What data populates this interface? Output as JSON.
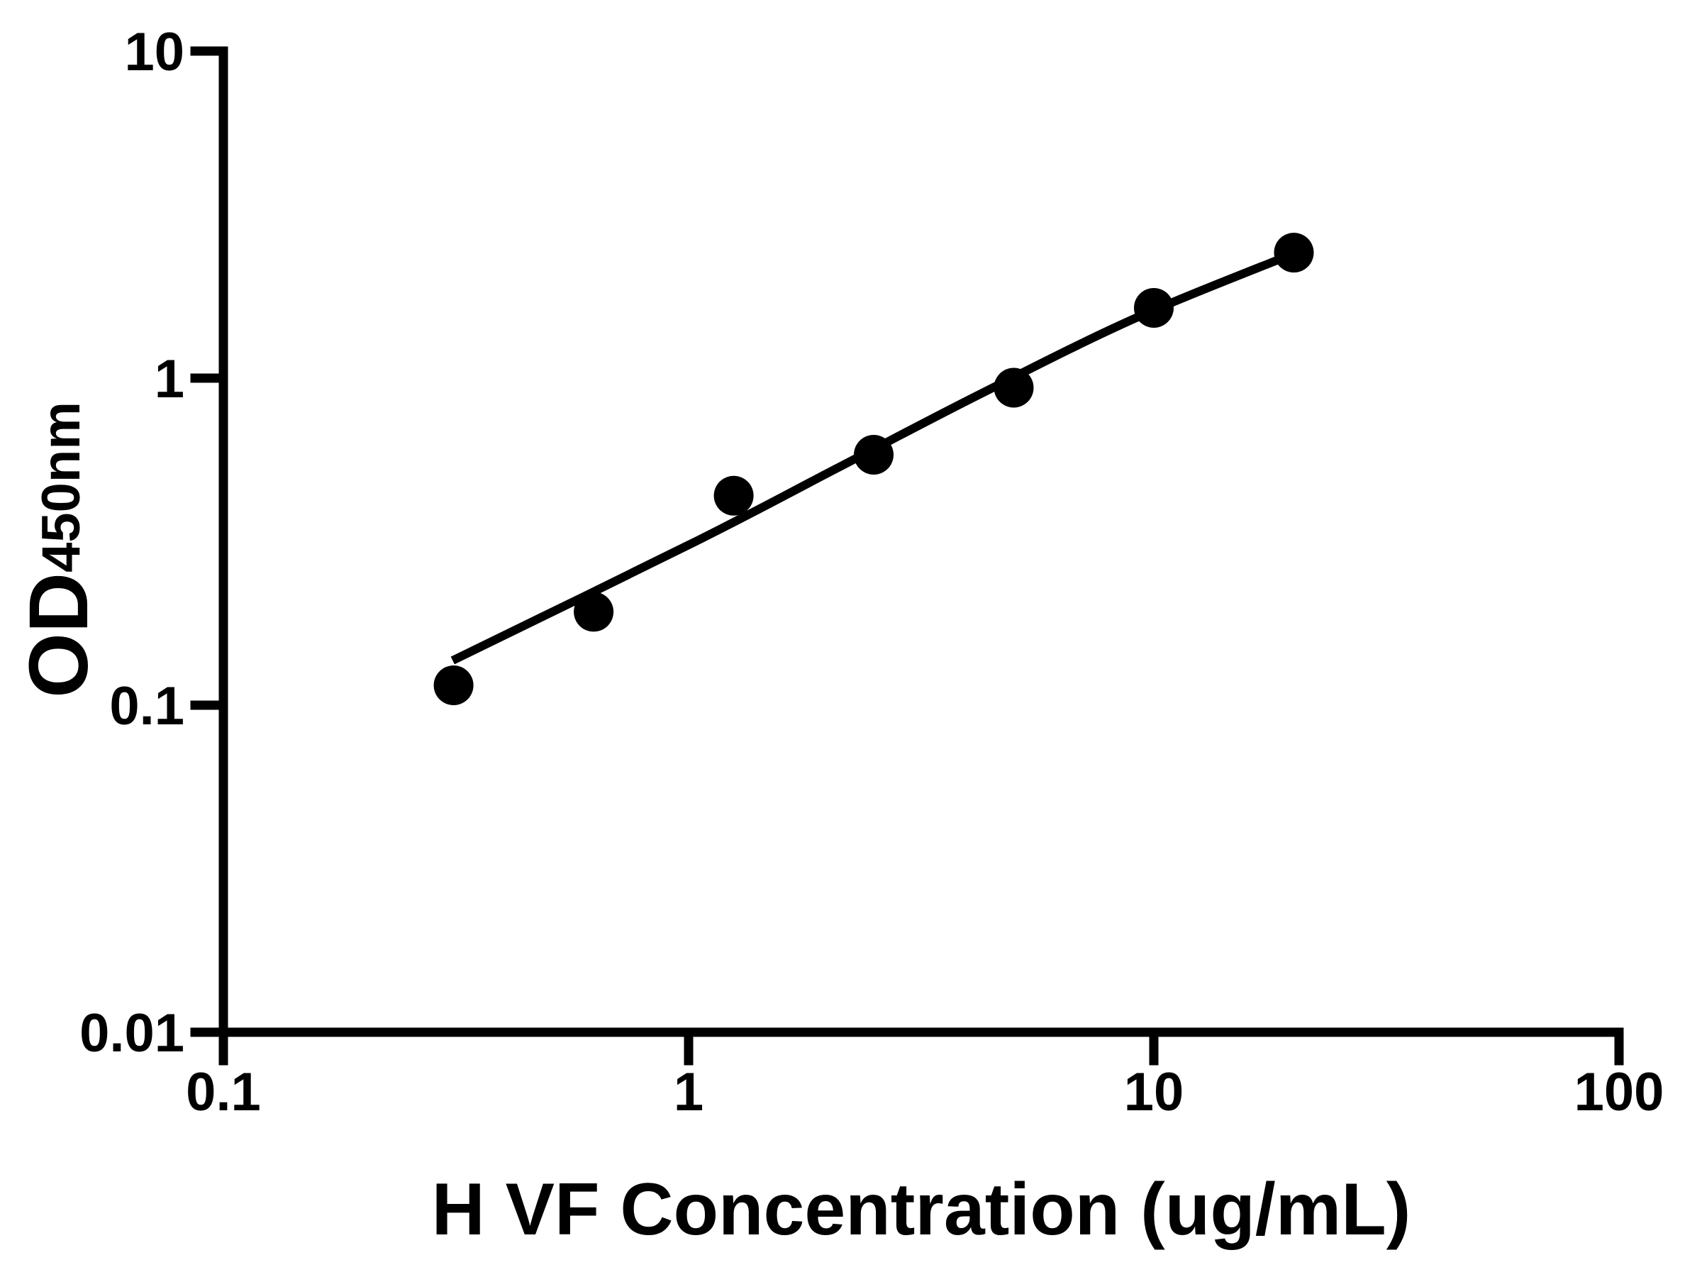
{
  "figure": {
    "background": "#ffffff",
    "ink": "#000000"
  },
  "chart_data": {
    "type": "scatter",
    "title": "",
    "xlabel": "H VF Concentration (ug/mL)",
    "ylabel": "OD",
    "ylabel_subscript": "450nm",
    "x_scale": "log10",
    "y_scale": "log10",
    "xlim": [
      0.1,
      100
    ],
    "ylim": [
      0.01,
      10
    ],
    "x_ticks": [
      0.1,
      1,
      10,
      100
    ],
    "x_tick_labels": [
      "0.1",
      "1",
      "10",
      "100"
    ],
    "y_ticks": [
      0.01,
      0.1,
      1,
      10
    ],
    "y_tick_labels": [
      "0.01",
      "0.1",
      "1",
      "10"
    ],
    "grid": false,
    "legend": null,
    "marker": {
      "shape": "circle",
      "color": "#000000",
      "radius_px": 28
    },
    "line_color": "#000000",
    "series": [
      {
        "name": "standard-points",
        "type": "scatter",
        "points": [
          {
            "x": 0.3125,
            "y": 0.115
          },
          {
            "x": 0.625,
            "y": 0.193
          },
          {
            "x": 1.25,
            "y": 0.437
          },
          {
            "x": 2.5,
            "y": 0.583
          },
          {
            "x": 5,
            "y": 0.935
          },
          {
            "x": 10,
            "y": 1.64
          },
          {
            "x": 20,
            "y": 2.42
          }
        ]
      },
      {
        "name": "fit-curve",
        "type": "line",
        "points": [
          {
            "x": 0.311,
            "y": 0.137
          },
          {
            "x": 1.033,
            "y": 0.316
          },
          {
            "x": 2.083,
            "y": 0.53
          },
          {
            "x": 4.2,
            "y": 0.889
          },
          {
            "x": 9.1,
            "y": 1.522
          },
          {
            "x": 20.25,
            "y": 2.42
          }
        ]
      }
    ]
  }
}
